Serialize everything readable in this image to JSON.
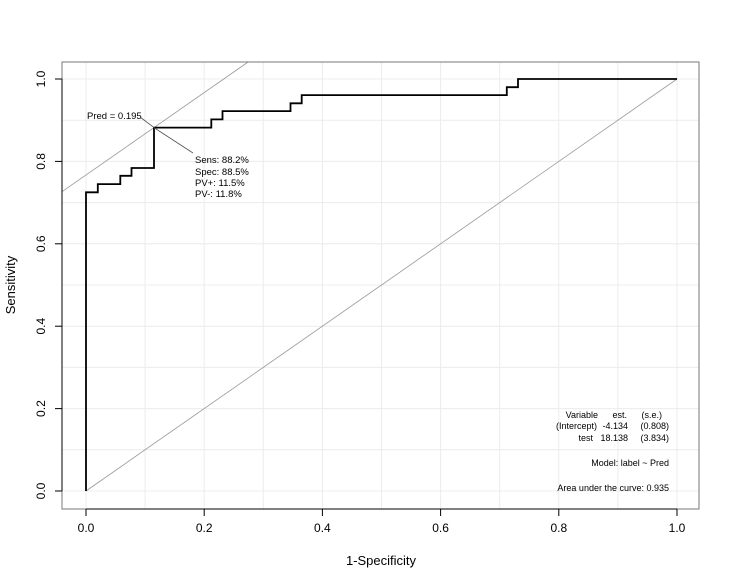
{
  "chart_data": {
    "type": "line",
    "title": "",
    "xlabel": "1-Specificity",
    "ylabel": "Sensitivity",
    "xlim": [
      0,
      1
    ],
    "ylim": [
      0,
      1
    ],
    "grid": true,
    "x_ticks": [
      "0.0",
      "0.2",
      "0.4",
      "0.6",
      "0.8",
      "1.0"
    ],
    "y_ticks": [
      "0.0",
      "0.2",
      "0.4",
      "0.6",
      "0.8",
      "1.0"
    ],
    "series": [
      {
        "values": [
          [
            0,
            0
          ],
          [
            0,
            0.725
          ],
          [
            0.02,
            0.725
          ],
          [
            0.02,
            0.745
          ],
          [
            0.058,
            0.745
          ],
          [
            0.058,
            0.765
          ],
          [
            0.077,
            0.765
          ],
          [
            0.077,
            0.784
          ],
          [
            0.115,
            0.784
          ],
          [
            0.115,
            0.882
          ],
          [
            0.212,
            0.882
          ],
          [
            0.212,
            0.902
          ],
          [
            0.231,
            0.902
          ],
          [
            0.231,
            0.922
          ],
          [
            0.346,
            0.922
          ],
          [
            0.346,
            0.941
          ],
          [
            0.365,
            0.941
          ],
          [
            0.365,
            0.961
          ],
          [
            0.712,
            0.961
          ],
          [
            0.712,
            0.98
          ],
          [
            0.731,
            0.98
          ],
          [
            0.731,
            1.0
          ],
          [
            1.0,
            1.0
          ]
        ]
      }
    ],
    "reference_lines": {
      "diagonal": [
        [
          0,
          0
        ],
        [
          1,
          1
        ]
      ],
      "tangent_slope": 1,
      "tangent_intercept": 0.767
    },
    "optimal_point": {
      "x": 0.115,
      "y": 0.882,
      "label": "Pred = 0.195",
      "stats": [
        "Sens: 88.2%",
        "Spec: 88.5%",
        "PV+: 11.5%",
        "PV-: 11.8%"
      ]
    },
    "legend": {
      "placement": "bottom-right",
      "header": {
        "variable": "Variable",
        "est": "est.",
        "se": "(s.e.)"
      },
      "rows": [
        {
          "variable": "(Intercept)",
          "est": "-4.134",
          "se": "(0.808)"
        },
        {
          "variable": "test",
          "est": "18.138",
          "se": "(3.834)"
        }
      ],
      "model": "Model:  label ~ Pred",
      "auc": "Area under the curve: 0.935"
    }
  }
}
